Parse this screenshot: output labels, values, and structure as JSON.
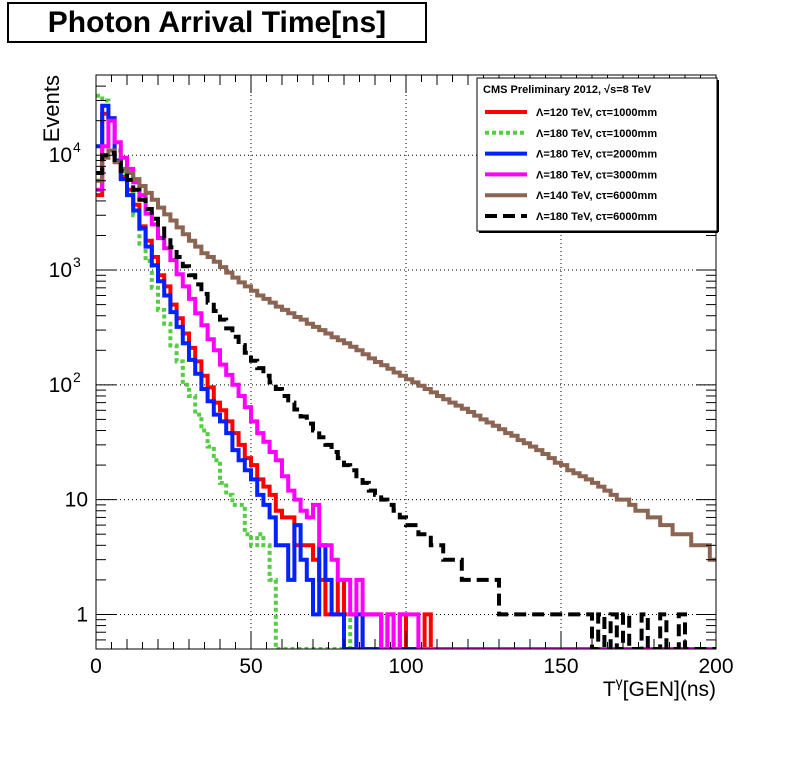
{
  "chart_data": {
    "type": "line",
    "title": "Photon Arrival Time[ns]",
    "xlabel": "T^{γ}[GEN](ns)",
    "xlabel_parts": {
      "base": "T",
      "sup": "γ",
      "rest": "[GEN](ns)"
    },
    "ylabel": "Events",
    "xlim": [
      0,
      200
    ],
    "ylim": [
      0.5,
      50000
    ],
    "y_scale": "log",
    "grid": true,
    "x_ticks": [
      0,
      50,
      100,
      150,
      200
    ],
    "x_tick_labels": [
      "0",
      "50",
      "100",
      "150",
      "200"
    ],
    "y_ticks": [
      {
        "value": 1,
        "base": "1",
        "exp": ""
      },
      {
        "value": 10,
        "base": "10",
        "exp": ""
      },
      {
        "value": 100,
        "base": "10",
        "exp": "2"
      },
      {
        "value": 1000,
        "base": "10",
        "exp": "3"
      },
      {
        "value": 10000,
        "base": "10",
        "exp": "4"
      }
    ],
    "legend_header": "CMS Preliminary 2012,     √s=8 TeV",
    "legend_placement": "top-right",
    "bin_width": 2,
    "series": [
      {
        "name": "Λ=120 TeV, cτ=1000mm",
        "color": "#ff0000",
        "dash": "",
        "values": [
          4500,
          23000,
          21000,
          9000,
          6500,
          5000,
          3700,
          2400,
          1800,
          1300,
          900,
          720,
          500,
          380,
          280,
          210,
          160,
          120,
          95,
          70,
          60,
          48,
          38,
          30,
          23,
          20,
          15,
          13,
          11,
          8,
          7,
          7,
          4,
          4,
          4,
          3,
          2,
          1,
          1,
          2,
          1,
          1,
          0.5,
          1,
          1,
          1,
          0.5,
          1,
          0.5,
          1,
          0.5,
          0.5,
          0.5,
          1,
          0.5,
          0.5,
          0.5,
          0.5,
          0.5,
          0.5,
          0.5,
          0.5,
          0.5,
          0.5,
          0.5,
          0.5,
          0.5,
          0.5,
          0.5,
          0.5,
          0.5,
          0.5,
          0.5,
          0.5,
          0.5,
          0.5,
          0.5,
          0.5,
          0.5,
          0.5,
          0.5,
          0.5,
          0.5,
          0.5,
          0.5,
          0.5,
          0.5,
          0.5,
          0.5,
          0.5,
          0.5,
          0.5,
          0.5,
          0.5,
          0.5,
          0.5,
          0.5,
          0.5,
          0.5,
          0.5
        ]
      },
      {
        "name": "Λ=180 TeV, cτ=1000mm",
        "color": "#55cc44",
        "dash": "4,3",
        "values": [
          33000,
          30000,
          20000,
          11000,
          7000,
          4600,
          3000,
          1700,
          1200,
          700,
          450,
          340,
          220,
          160,
          100,
          80,
          55,
          40,
          29,
          22,
          14,
          11,
          9,
          9,
          5,
          4,
          5,
          4,
          2,
          0.5,
          0.5,
          0.5,
          0.5,
          0.5,
          0.5,
          0.5,
          0.5,
          0.5,
          0.5,
          0.5,
          1,
          0.5,
          0.5,
          0.5,
          0.5,
          0.5,
          0.5,
          0.5,
          0.5,
          0.5,
          0.5,
          0.5,
          0.5,
          0.5,
          0.5,
          0.5,
          0.5,
          0.5,
          0.5,
          0.5,
          0.5,
          0.5,
          0.5,
          0.5,
          0.5,
          0.5,
          0.5,
          0.5,
          0.5,
          0.5,
          0.5,
          0.5,
          0.5,
          0.5,
          0.5,
          0.5,
          0.5,
          0.5,
          0.5,
          0.5,
          0.5,
          0.5,
          0.5,
          0.5,
          0.5,
          0.5,
          0.5,
          0.5,
          0.5,
          0.5,
          0.5,
          0.5,
          0.5,
          0.5,
          0.5,
          0.5,
          0.5,
          0.5,
          0.5,
          0.5
        ]
      },
      {
        "name": "Λ=180 TeV, cτ=2000mm",
        "color": "#0022ff",
        "dash": "",
        "values": [
          12000,
          27000,
          21000,
          9000,
          6200,
          4500,
          3300,
          2300,
          1600,
          1100,
          800,
          600,
          430,
          320,
          230,
          165,
          125,
          92,
          72,
          55,
          48,
          38,
          27,
          22,
          18,
          15,
          11,
          9,
          7,
          4,
          4,
          2,
          6,
          3,
          2,
          1,
          4,
          2,
          1,
          1,
          0.5,
          0.5,
          1,
          0.5,
          0.5,
          0.5,
          0.5,
          0.5,
          0.5,
          0.5,
          0.5,
          0.5,
          0.5,
          0.5,
          0.5,
          0.5,
          0.5,
          0.5,
          0.5,
          0.5,
          0.5,
          0.5,
          0.5,
          0.5,
          0.5,
          0.5,
          0.5,
          0.5,
          0.5,
          0.5,
          0.5,
          0.5,
          0.5,
          0.5,
          0.5,
          0.5,
          0.5,
          0.5,
          0.5,
          0.5,
          0.5,
          0.5,
          0.5,
          0.5,
          0.5,
          0.5,
          0.5,
          0.5,
          0.5,
          0.5,
          0.5,
          0.5,
          0.5,
          0.5,
          0.5,
          0.5,
          0.5,
          0.5,
          0.5,
          0.5
        ]
      },
      {
        "name": "Λ=180 TeV, cτ=3000mm",
        "color": "#ff00ff",
        "dash": "",
        "values": [
          5000,
          12000,
          20000,
          13000,
          9500,
          7600,
          5800,
          4500,
          3100,
          2500,
          1900,
          1550,
          1220,
          920,
          720,
          560,
          420,
          330,
          250,
          200,
          150,
          122,
          100,
          80,
          64,
          48,
          38,
          32,
          26,
          22,
          16,
          12,
          10,
          8,
          7,
          9,
          4,
          4,
          3,
          2,
          2,
          1,
          2,
          1,
          1,
          1,
          0.5,
          1,
          0.5,
          1,
          1,
          1,
          0.5,
          0.5,
          0.5,
          0.5,
          0.5,
          0.5,
          0.5,
          0.5,
          0.5,
          0.5,
          0.5,
          0.5,
          0.5,
          0.5,
          0.5,
          0.5,
          0.5,
          0.5,
          0.5,
          0.5,
          0.5,
          0.5,
          0.5,
          0.5,
          0.5,
          0.5,
          0.5,
          0.5,
          0.5,
          0.5,
          0.5,
          0.5,
          0.5,
          0.5,
          0.5,
          0.5,
          0.5,
          0.5,
          0.5,
          0.5,
          0.5,
          0.5,
          0.5,
          0.5,
          0.5,
          0.5,
          0.5,
          0.5
        ]
      },
      {
        "name": "Λ=140 TeV, cτ=6000mm",
        "color": "#8b6452",
        "dash": "",
        "values": [
          6000,
          9500,
          11000,
          8700,
          7600,
          7000,
          6200,
          5400,
          4700,
          4100,
          3500,
          3050,
          2700,
          2350,
          2050,
          1800,
          1600,
          1400,
          1300,
          1180,
          1060,
          950,
          860,
          780,
          720,
          660,
          600,
          560,
          520,
          480,
          450,
          420,
          390,
          370,
          340,
          320,
          300,
          280,
          260,
          245,
          230,
          215,
          200,
          185,
          170,
          158,
          148,
          138,
          128,
          120,
          112,
          105,
          98,
          92,
          86,
          80,
          75,
          70,
          66,
          62,
          58,
          54,
          50,
          47,
          44,
          41,
          38,
          36,
          33,
          31,
          29,
          27,
          25,
          23,
          21,
          20,
          18,
          17,
          16,
          15,
          14,
          13,
          12,
          11,
          10,
          10,
          9,
          8,
          8,
          7,
          7,
          6,
          6,
          5,
          5,
          5,
          4,
          4,
          4,
          3
        ]
      },
      {
        "name": "Λ=180 TeV, cτ=6000mm",
        "color": "#000000",
        "dash": "12,6",
        "values": [
          7000,
          10000,
          10500,
          8600,
          7300,
          6100,
          5000,
          4100,
          3400,
          2800,
          2300,
          1900,
          1580,
          1300,
          1080,
          900,
          750,
          620,
          520,
          440,
          370,
          310,
          262,
          222,
          190,
          162,
          140,
          120,
          105,
          92,
          80,
          70,
          61,
          53,
          46,
          40,
          35,
          30,
          26,
          23,
          20,
          18,
          16,
          14,
          12,
          11,
          10,
          9,
          8,
          7,
          6,
          6,
          5,
          5,
          4,
          4,
          3,
          3,
          3,
          2,
          2,
          2,
          2,
          2,
          2,
          1,
          1,
          1,
          1,
          1,
          1,
          1,
          1,
          1,
          1,
          1,
          1,
          1,
          1,
          1,
          0.5,
          1,
          0.5,
          1,
          0.5,
          1,
          0.5,
          0.5,
          1,
          0.5,
          0.5,
          1,
          0.5,
          0.5,
          1,
          0.5,
          0.5,
          0.5,
          0.5,
          0.5
        ]
      }
    ]
  }
}
